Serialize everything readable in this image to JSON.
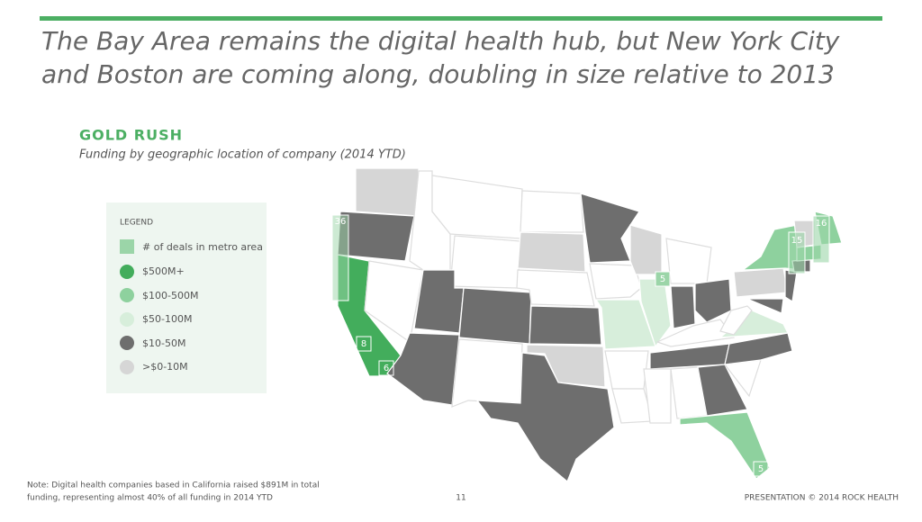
{
  "header": {
    "title_line1": "The Bay Area remains the digital health hub, but New York City",
    "title_line2": "and Boston are coming along, doubling in size relative to 2013"
  },
  "section": {
    "heading": "GOLD RUSH",
    "subtitle": "Funding by geographic location of company (2014 YTD)"
  },
  "legend": {
    "title": "LEGEND",
    "items": [
      "# of deals in metro area",
      "$500M+",
      "$100-500M",
      "$50-100M",
      "$10-50M",
      ">$0-10M"
    ]
  },
  "map": {
    "markers": [
      36,
      8,
      6,
      5,
      15,
      16,
      5
    ]
  },
  "footer": {
    "note_line1": "Note: Digital health companies based in California raised $891M in total",
    "note_line2": "funding, representing almost 40% of all funding in 2014 YTD",
    "page": "11",
    "credit": "PRESENTATION © 2014 ROCK HEALTH"
  }
}
